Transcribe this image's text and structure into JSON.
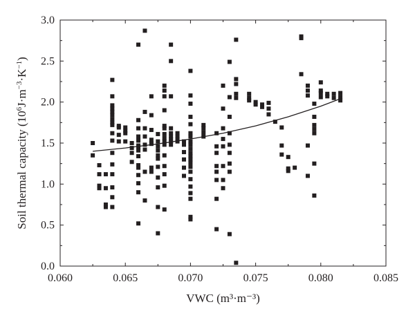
{
  "chart_data": {
    "type": "scatter",
    "xlabel": "VWC (m³·m⁻³)",
    "ylabel_parts": [
      "Soil thermal capacity (10",
      "6",
      "J·m",
      "−3",
      "·K",
      "−1",
      ")"
    ],
    "xlim": [
      0.06,
      0.085
    ],
    "ylim": [
      0.0,
      3.0
    ],
    "xticks": [
      0.06,
      0.065,
      0.07,
      0.075,
      0.08,
      0.085
    ],
    "xtick_labels": [
      "0.060",
      "0.065",
      "0.070",
      "0.075",
      "0.080",
      "0.085"
    ],
    "yticks": [
      0.0,
      0.5,
      1.0,
      1.5,
      2.0,
      2.5,
      3.0
    ],
    "ytick_labels": [
      "0.0",
      "0.5",
      "1.0",
      "1.5",
      "2.0",
      "2.5",
      "3.0"
    ],
    "grid": false,
    "legend": "none",
    "point_color": "#231f20",
    "trendline": {
      "type": "exponential-like fit",
      "points": [
        [
          0.0625,
          1.4
        ],
        [
          0.065,
          1.44
        ],
        [
          0.0675,
          1.49
        ],
        [
          0.07,
          1.55
        ],
        [
          0.0725,
          1.62
        ],
        [
          0.075,
          1.71
        ],
        [
          0.0775,
          1.82
        ],
        [
          0.08,
          1.95
        ],
        [
          0.0815,
          2.04
        ]
      ]
    },
    "points": [
      [
        0.0625,
        1.5
      ],
      [
        0.0625,
        1.35
      ],
      [
        0.063,
        1.23
      ],
      [
        0.063,
        1.12
      ],
      [
        0.063,
        0.98
      ],
      [
        0.063,
        0.95
      ],
      [
        0.0635,
        0.75
      ],
      [
        0.0635,
        0.72
      ],
      [
        0.0635,
        1.12
      ],
      [
        0.0635,
        0.95
      ],
      [
        0.064,
        2.27
      ],
      [
        0.064,
        2.07
      ],
      [
        0.064,
        1.96
      ],
      [
        0.064,
        1.92
      ],
      [
        0.064,
        1.88
      ],
      [
        0.064,
        1.84
      ],
      [
        0.064,
        1.79
      ],
      [
        0.064,
        1.75
      ],
      [
        0.064,
        1.72
      ],
      [
        0.064,
        1.62
      ],
      [
        0.064,
        1.53
      ],
      [
        0.064,
        1.38
      ],
      [
        0.064,
        1.24
      ],
      [
        0.064,
        1.12
      ],
      [
        0.064,
        0.96
      ],
      [
        0.064,
        0.84
      ],
      [
        0.064,
        0.72
      ],
      [
        0.0645,
        1.71
      ],
      [
        0.0645,
        1.69
      ],
      [
        0.0645,
        1.6
      ],
      [
        0.0645,
        1.52
      ],
      [
        0.065,
        1.69
      ],
      [
        0.065,
        1.65
      ],
      [
        0.065,
        1.62
      ],
      [
        0.065,
        1.52
      ],
      [
        0.0655,
        1.5
      ],
      [
        0.0655,
        1.44
      ],
      [
        0.0655,
        1.38
      ],
      [
        0.0655,
        1.27
      ],
      [
        0.066,
        2.7
      ],
      [
        0.066,
        1.78
      ],
      [
        0.066,
        1.68
      ],
      [
        0.066,
        1.58
      ],
      [
        0.066,
        1.53
      ],
      [
        0.066,
        1.47
      ],
      [
        0.066,
        1.45
      ],
      [
        0.066,
        1.41
      ],
      [
        0.066,
        1.34
      ],
      [
        0.066,
        1.23
      ],
      [
        0.066,
        1.2
      ],
      [
        0.066,
        1.11
      ],
      [
        0.066,
        1.01
      ],
      [
        0.066,
        0.9
      ],
      [
        0.066,
        0.52
      ],
      [
        0.0665,
        2.87
      ],
      [
        0.0665,
        1.88
      ],
      [
        0.0665,
        1.68
      ],
      [
        0.0665,
        1.58
      ],
      [
        0.0665,
        1.48
      ],
      [
        0.0665,
        1.42
      ],
      [
        0.0665,
        1.15
      ],
      [
        0.0665,
        0.8
      ],
      [
        0.067,
        2.07
      ],
      [
        0.067,
        1.84
      ],
      [
        0.067,
        1.66
      ],
      [
        0.067,
        1.54
      ],
      [
        0.067,
        1.5
      ],
      [
        0.067,
        1.49
      ],
      [
        0.067,
        1.2
      ],
      [
        0.067,
        1.15
      ],
      [
        0.0675,
        1.61
      ],
      [
        0.0675,
        1.52
      ],
      [
        0.0675,
        1.46
      ],
      [
        0.0675,
        1.41
      ],
      [
        0.0675,
        1.35
      ],
      [
        0.0675,
        1.31
      ],
      [
        0.0675,
        1.21
      ],
      [
        0.0675,
        1.08
      ],
      [
        0.0675,
        0.96
      ],
      [
        0.0675,
        0.72
      ],
      [
        0.0675,
        0.4
      ],
      [
        0.068,
        2.2
      ],
      [
        0.068,
        2.14
      ],
      [
        0.068,
        2.07
      ],
      [
        0.068,
        1.9
      ],
      [
        0.068,
        1.71
      ],
      [
        0.068,
        1.68
      ],
      [
        0.068,
        1.61
      ],
      [
        0.068,
        1.56
      ],
      [
        0.068,
        1.52
      ],
      [
        0.068,
        1.48
      ],
      [
        0.068,
        1.35
      ],
      [
        0.068,
        1.22
      ],
      [
        0.068,
        1.12
      ],
      [
        0.068,
        0.98
      ],
      [
        0.068,
        0.69
      ],
      [
        0.0685,
        2.7
      ],
      [
        0.0685,
        2.5
      ],
      [
        0.0685,
        2.07
      ],
      [
        0.0685,
        1.68
      ],
      [
        0.0685,
        1.62
      ],
      [
        0.0685,
        1.58
      ],
      [
        0.0685,
        1.55
      ],
      [
        0.0685,
        1.52
      ],
      [
        0.0685,
        1.48
      ],
      [
        0.069,
        1.62
      ],
      [
        0.069,
        1.58
      ],
      [
        0.069,
        1.55
      ],
      [
        0.069,
        1.52
      ],
      [
        0.0695,
        1.52
      ],
      [
        0.0695,
        1.48
      ],
      [
        0.0695,
        1.39
      ],
      [
        0.0695,
        1.3
      ],
      [
        0.0695,
        1.2
      ],
      [
        0.0695,
        1.1
      ],
      [
        0.07,
        2.38
      ],
      [
        0.07,
        2.08
      ],
      [
        0.07,
        1.98
      ],
      [
        0.07,
        1.82
      ],
      [
        0.07,
        1.73
      ],
      [
        0.07,
        1.62
      ],
      [
        0.07,
        1.58
      ],
      [
        0.07,
        1.52
      ],
      [
        0.07,
        1.48
      ],
      [
        0.07,
        1.43
      ],
      [
        0.07,
        1.38
      ],
      [
        0.07,
        1.34
      ],
      [
        0.07,
        1.3
      ],
      [
        0.07,
        1.26
      ],
      [
        0.07,
        1.21
      ],
      [
        0.07,
        1.15
      ],
      [
        0.07,
        1.06
      ],
      [
        0.07,
        0.97
      ],
      [
        0.07,
        0.89
      ],
      [
        0.07,
        0.82
      ],
      [
        0.07,
        0.6
      ],
      [
        0.07,
        0.57
      ],
      [
        0.071,
        1.72
      ],
      [
        0.071,
        1.68
      ],
      [
        0.071,
        1.63
      ],
      [
        0.071,
        1.58
      ],
      [
        0.072,
        1.62
      ],
      [
        0.072,
        1.46
      ],
      [
        0.072,
        1.38
      ],
      [
        0.072,
        1.22
      ],
      [
        0.072,
        1.15
      ],
      [
        0.072,
        1.05
      ],
      [
        0.072,
        0.82
      ],
      [
        0.072,
        0.45
      ],
      [
        0.0725,
        2.2
      ],
      [
        0.0725,
        1.92
      ],
      [
        0.0725,
        1.68
      ],
      [
        0.0725,
        1.55
      ],
      [
        0.0725,
        1.46
      ],
      [
        0.0725,
        1.22
      ],
      [
        0.0725,
        1.05
      ],
      [
        0.0725,
        0.95
      ],
      [
        0.073,
        2.49
      ],
      [
        0.073,
        2.06
      ],
      [
        0.073,
        1.82
      ],
      [
        0.073,
        1.62
      ],
      [
        0.073,
        1.48
      ],
      [
        0.073,
        1.38
      ],
      [
        0.073,
        1.25
      ],
      [
        0.073,
        1.15
      ],
      [
        0.073,
        0.39
      ],
      [
        0.0735,
        2.76
      ],
      [
        0.0735,
        2.28
      ],
      [
        0.0735,
        2.22
      ],
      [
        0.0735,
        2.1
      ],
      [
        0.0735,
        2.05
      ],
      [
        0.0735,
        0.04
      ],
      [
        0.0745,
        2.1
      ],
      [
        0.0745,
        2.05
      ],
      [
        0.0745,
        2.02
      ],
      [
        0.075,
        2.0
      ],
      [
        0.075,
        1.97
      ],
      [
        0.0755,
        1.97
      ],
      [
        0.0755,
        1.94
      ],
      [
        0.076,
        1.99
      ],
      [
        0.076,
        1.92
      ],
      [
        0.076,
        1.85
      ],
      [
        0.0765,
        1.76
      ],
      [
        0.077,
        1.69
      ],
      [
        0.077,
        1.47
      ],
      [
        0.077,
        1.36
      ],
      [
        0.0775,
        1.33
      ],
      [
        0.0775,
        1.19
      ],
      [
        0.0775,
        1.16
      ],
      [
        0.078,
        1.2
      ],
      [
        0.0785,
        2.8
      ],
      [
        0.0785,
        2.78
      ],
      [
        0.0785,
        2.34
      ],
      [
        0.079,
        2.2
      ],
      [
        0.079,
        2.14
      ],
      [
        0.079,
        2.08
      ],
      [
        0.079,
        1.47
      ],
      [
        0.079,
        1.1
      ],
      [
        0.0795,
        1.98
      ],
      [
        0.0795,
        1.82
      ],
      [
        0.0795,
        1.72
      ],
      [
        0.0795,
        1.67
      ],
      [
        0.0795,
        1.62
      ],
      [
        0.0795,
        1.25
      ],
      [
        0.0795,
        0.86
      ],
      [
        0.08,
        2.24
      ],
      [
        0.08,
        2.14
      ],
      [
        0.08,
        2.11
      ],
      [
        0.08,
        2.06
      ],
      [
        0.0805,
        2.1
      ],
      [
        0.0805,
        2.07
      ],
      [
        0.081,
        2.1
      ],
      [
        0.081,
        2.05
      ],
      [
        0.0815,
        2.11
      ],
      [
        0.0815,
        2.06
      ],
      [
        0.0815,
        2.02
      ]
    ]
  }
}
